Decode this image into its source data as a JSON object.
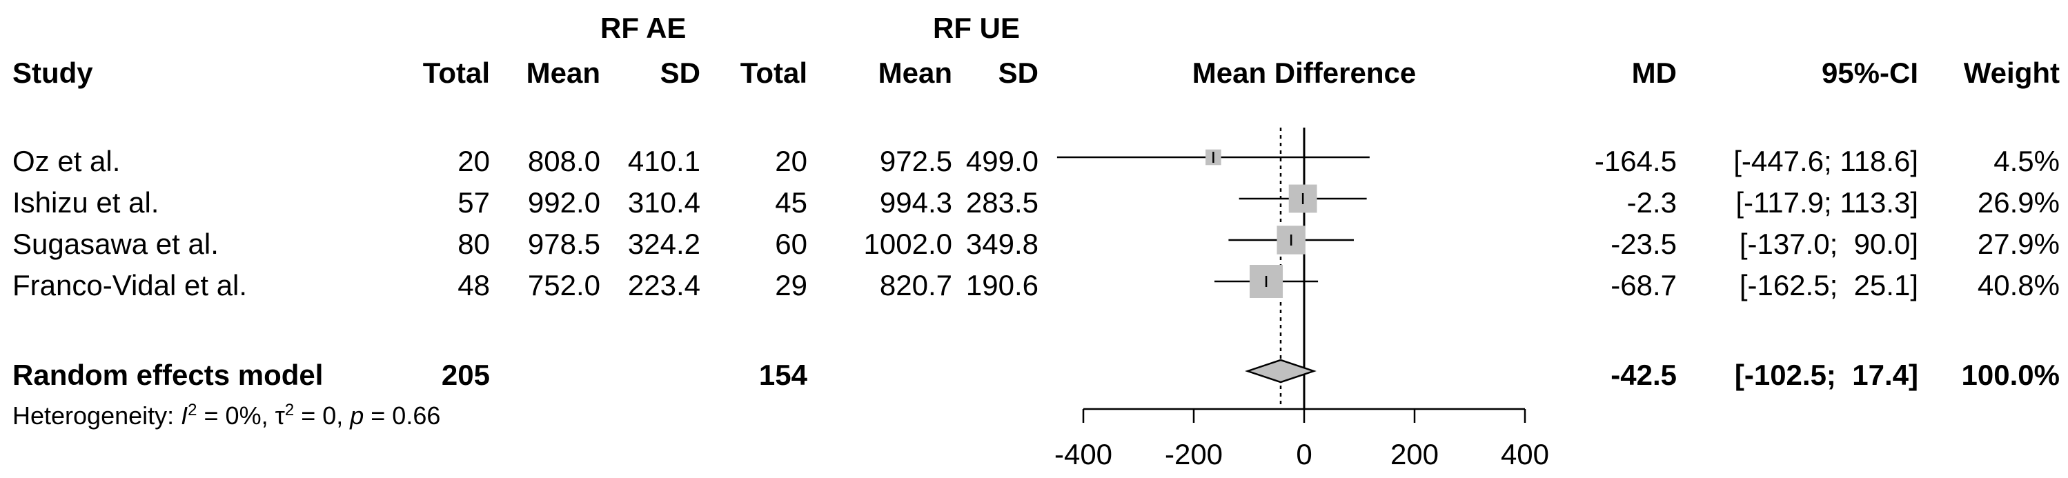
{
  "chart_data": {
    "type": "forest",
    "group_headers": {
      "exp": "RF AE",
      "ctrl": "RF UE"
    },
    "columns": {
      "study": "Study",
      "total_exp": "Total",
      "mean_exp": "Mean",
      "sd_exp": "SD",
      "total_ctrl": "Total",
      "mean_ctrl": "Mean",
      "sd_ctrl": "SD",
      "plot": "Mean Difference",
      "md": "MD",
      "ci": "95%-CI",
      "weight": "Weight"
    },
    "studies": [
      {
        "name": "Oz et al.",
        "total_exp": "20",
        "mean_exp": "808.0",
        "sd_exp": "410.1",
        "total_ctrl": "20",
        "mean_ctrl": "972.5",
        "sd_ctrl": "499.0",
        "md": -164.5,
        "ci_low": -447.6,
        "ci_high": 118.6,
        "md_text": "-164.5",
        "ci_text": "[-447.6; 118.6]",
        "weight_text": "4.5%",
        "weight": 4.5
      },
      {
        "name": "Ishizu et al.",
        "total_exp": "57",
        "mean_exp": "992.0",
        "sd_exp": "310.4",
        "total_ctrl": "45",
        "mean_ctrl": "994.3",
        "sd_ctrl": "283.5",
        "md": -2.3,
        "ci_low": -117.9,
        "ci_high": 113.3,
        "md_text": "-2.3",
        "ci_text": "[-117.9; 113.3]",
        "weight_text": "26.9%",
        "weight": 26.9
      },
      {
        "name": "Sugasawa et al.",
        "total_exp": "80",
        "mean_exp": "978.5",
        "sd_exp": "324.2",
        "total_ctrl": "60",
        "mean_ctrl": "1002.0",
        "sd_ctrl": "349.8",
        "md": -23.5,
        "ci_low": -137.0,
        "ci_high": 90.0,
        "md_text": "-23.5",
        "ci_text": "[-137.0;  90.0]",
        "weight_text": "27.9%",
        "weight": 27.9
      },
      {
        "name": "Franco-Vidal et al.",
        "total_exp": "48",
        "mean_exp": "752.0",
        "sd_exp": "223.4",
        "total_ctrl": "29",
        "mean_ctrl": "820.7",
        "sd_ctrl": "190.6",
        "md": -68.7,
        "ci_low": -162.5,
        "ci_high": 25.1,
        "md_text": "-68.7",
        "ci_text": "[-162.5;  25.1]",
        "weight_text": "40.8%",
        "weight": 40.8
      }
    ],
    "pooled": {
      "name": "Random effects model",
      "total_exp": "205",
      "total_ctrl": "154",
      "md": -42.5,
      "ci_low": -102.5,
      "ci_high": 17.4,
      "md_text": "-42.5",
      "ci_text": "[-102.5;  17.4]",
      "weight_text": "100.0%"
    },
    "heterogeneity": {
      "prefix": "Heterogeneity: ",
      "i2_label": "I",
      "i2_value": " = 0%, ",
      "tau_label": "τ",
      "tau_value": " = 0, ",
      "p_label": "p",
      "p_value": " = 0.66"
    },
    "x_axis": {
      "min": -400,
      "max": 400,
      "ticks": [
        -400,
        -200,
        0,
        200,
        400
      ],
      "tick_labels": [
        "-400",
        "-200",
        "0",
        "200",
        "400"
      ]
    },
    "marker_color": "#c0c0c0",
    "diamond_color": "#c0c0c0"
  }
}
